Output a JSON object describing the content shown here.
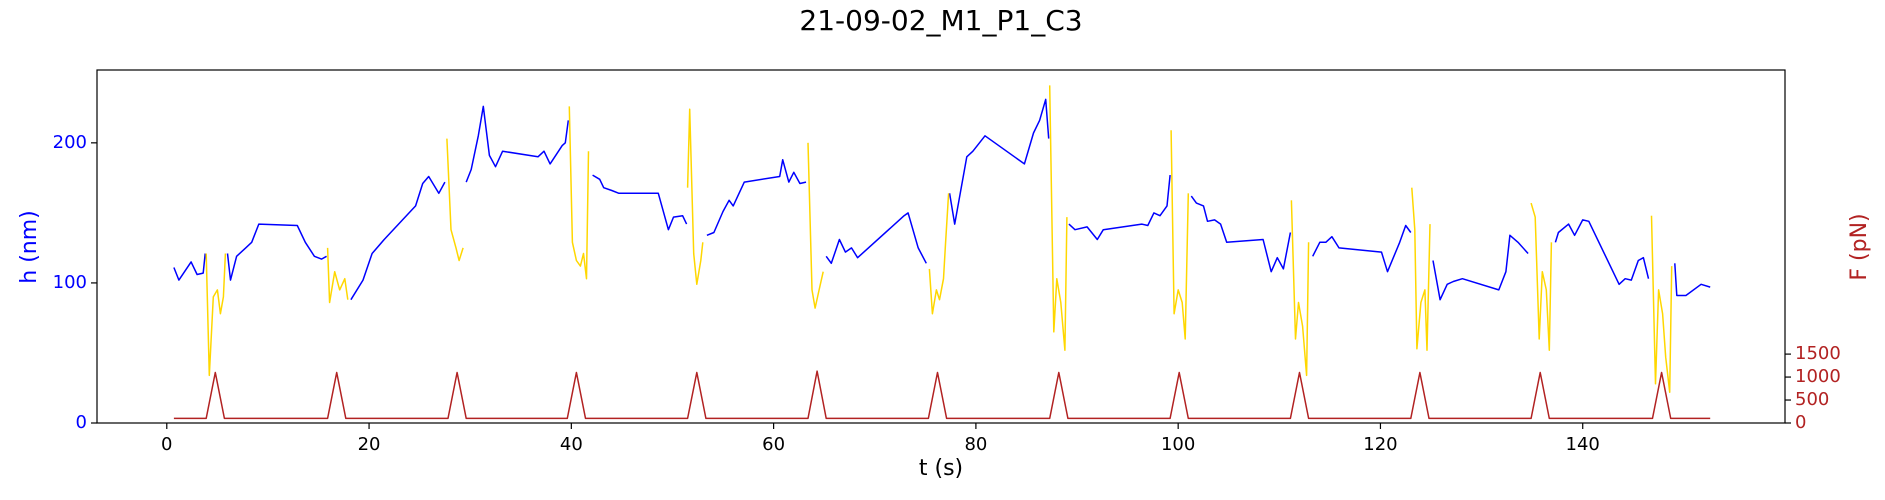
{
  "chart_data": {
    "type": "line",
    "title": "21-09-02_M1_P1_C3",
    "xlabel": "t (s)",
    "ylabel": "h (nm)",
    "y2label": "F (pN)",
    "ycolor": "#0000ff",
    "y2color": "#b22222",
    "xlim": [
      -6.9,
      160
    ],
    "xticks": [
      0,
      20,
      40,
      60,
      80,
      100,
      120,
      140
    ],
    "ylim": [
      0,
      252
    ],
    "yticks": [
      0,
      100,
      200
    ],
    "y2lim": [
      0,
      7684
    ],
    "y2ticks": [
      0,
      500,
      1000,
      1500
    ],
    "series": [
      {
        "color": "#0000ff",
        "x": [
          0.7,
          1.2,
          2.4,
          3,
          3.6,
          3.8,
          null,
          6,
          6.3,
          6.9,
          7.8,
          8.4,
          9.1,
          12.9,
          13.7,
          14.6,
          15.3,
          15.8,
          null,
          18.2,
          19.4,
          20.3,
          21.5,
          24.6,
          25.3,
          25.9,
          26.9,
          27.5,
          null,
          29.6,
          30.1,
          30.8,
          31.3,
          31.9,
          32.5,
          33.2,
          36.7,
          37.3,
          37.9,
          39.1,
          39.4,
          39.7,
          null,
          42.1,
          42.8,
          43.2,
          44,
          44.7,
          48.6,
          49.6,
          50.1,
          51,
          51.4,
          null,
          53.4,
          54.1,
          55,
          55.6,
          56,
          57.1,
          60.6,
          60.9,
          61.5,
          62,
          62.6,
          63.2,
          null,
          65.2,
          65.7,
          66.5,
          67.1,
          67.7,
          68.3,
          72.9,
          73.3,
          74.3,
          75.1,
          null,
          77.4,
          77.9,
          79.1,
          79.7,
          80.9,
          84.8,
          85.7,
          86.3,
          86.9,
          87.2,
          null,
          89.2,
          89.8,
          91,
          92,
          92.6,
          96.4,
          97,
          97.6,
          98.2,
          98.9,
          99.2,
          null,
          101.3,
          101.8,
          102.5,
          102.9,
          103.6,
          104.2,
          104.8,
          108.4,
          109.2,
          109.8,
          110.4,
          111.1,
          null,
          113.3,
          114,
          114.6,
          115.2,
          115.9,
          120.1,
          120.7,
          121.9,
          122.5,
          123,
          null,
          125.2,
          125.9,
          126.6,
          127.2,
          128.1,
          131.7,
          132.4,
          132.8,
          133.6,
          134.6,
          null,
          137.3,
          137.6,
          138.6,
          139.2,
          140,
          140.6,
          143.6,
          144.2,
          144.8,
          145.5,
          146,
          146.5,
          null,
          149.1,
          149.3,
          150.2,
          151.7,
          152.6
        ],
        "values": [
          111,
          102,
          115,
          106,
          107,
          121,
          null,
          121,
          102,
          119,
          125,
          129,
          142,
          141,
          129,
          119,
          117,
          119,
          null,
          88,
          102,
          121,
          131,
          155,
          171,
          176,
          164,
          172,
          null,
          172,
          181,
          205,
          226,
          191,
          183,
          194,
          190,
          194,
          185,
          198,
          200,
          216,
          null,
          177,
          174,
          168,
          166,
          164,
          164,
          138,
          147,
          148,
          142,
          null,
          134,
          136,
          151,
          159,
          155,
          172,
          176,
          188,
          172,
          179,
          171,
          172,
          null,
          119,
          114,
          131,
          122,
          125,
          118,
          148,
          150,
          125,
          114,
          null,
          164,
          142,
          190,
          194,
          205,
          185,
          207,
          216,
          231,
          203,
          null,
          142,
          138,
          140,
          131,
          138,
          142,
          141,
          150,
          148,
          155,
          177,
          null,
          162,
          157,
          155,
          144,
          145,
          142,
          129,
          131,
          108,
          118,
          110,
          136,
          null,
          119,
          129,
          129,
          133,
          125,
          122,
          108,
          129,
          141,
          136,
          null,
          116,
          88,
          99,
          101,
          103,
          95,
          108,
          134,
          129,
          121,
          null,
          129,
          136,
          142,
          134,
          145,
          144,
          99,
          103,
          102,
          116,
          118,
          103,
          null,
          114,
          91,
          91,
          99,
          97
        ]
      },
      {
        "color": "#ffd700",
        "x": [
          3.9,
          4.2,
          4.6,
          5,
          5.3,
          5.6,
          5.8,
          null,
          15.9,
          16.1,
          16.6,
          17.1,
          17.6,
          17.9,
          null,
          27.7,
          28.1,
          28.6,
          28.9,
          29.3,
          null,
          39.8,
          40.1,
          40.5,
          40.9,
          41.2,
          41.5,
          41.7,
          null,
          51.5,
          51.7,
          52.1,
          52.4,
          52.8,
          53,
          null,
          63.4,
          63.8,
          64.1,
          64.5,
          64.9,
          null,
          75.4,
          75.7,
          76.1,
          76.4,
          76.8,
          77,
          77.3,
          null,
          87.3,
          87.7,
          88,
          88.4,
          88.8,
          89,
          null,
          99.3,
          99.6,
          100,
          100.4,
          100.7,
          101,
          null,
          111.2,
          111.6,
          111.9,
          112.3,
          112.7,
          112.9,
          null,
          123.1,
          123.4,
          123.6,
          124,
          124.4,
          124.6,
          124.9,
          null,
          134.9,
          135.3,
          135.7,
          136,
          136.4,
          136.7,
          136.9,
          null,
          146.8,
          147.2,
          147.5,
          147.9,
          148.2,
          148.6,
          148.8
        ],
        "values": [
          121,
          34,
          90,
          95,
          78,
          90,
          121,
          null,
          125,
          86,
          108,
          95,
          103,
          88,
          null,
          203,
          138,
          125,
          116,
          125,
          null,
          226,
          129,
          116,
          112,
          121,
          103,
          194,
          null,
          168,
          224,
          121,
          99,
          116,
          129,
          null,
          200,
          95,
          82,
          95,
          108,
          null,
          110,
          78,
          95,
          88,
          103,
          129,
          164,
          null,
          241,
          65,
          103,
          86,
          52,
          147,
          null,
          209,
          78,
          95,
          86,
          60,
          164,
          null,
          159,
          60,
          86,
          69,
          34,
          129,
          null,
          168,
          138,
          53,
          86,
          95,
          52,
          142,
          null,
          157,
          147,
          60,
          108,
          95,
          52,
          129,
          null,
          148,
          28,
          95,
          78,
          47,
          22,
          112
        ]
      },
      {
        "color": "#b22222",
        "axis": "y2",
        "x": [
          0.7,
          3.9,
          4.8,
          5.7,
          15.9,
          16.8,
          17.7,
          27.8,
          28.7,
          29.6,
          39.6,
          40.5,
          41.4,
          51.5,
          52.4,
          53.3,
          63.4,
          64.3,
          65.2,
          75.3,
          76.2,
          77.1,
          87.3,
          88.2,
          89.1,
          99.2,
          100.1,
          101,
          111.1,
          112,
          112.9,
          123,
          123.9,
          124.8,
          134.9,
          135.8,
          136.7,
          146.9,
          147.8,
          148.7,
          152.6
        ],
        "values": [
          100,
          100,
          1100,
          100,
          100,
          1100,
          100,
          100,
          1100,
          100,
          100,
          1100,
          100,
          100,
          1100,
          100,
          100,
          1130,
          100,
          100,
          1100,
          100,
          100,
          1100,
          100,
          100,
          1100,
          100,
          100,
          1100,
          100,
          100,
          1100,
          100,
          100,
          1100,
          100,
          100,
          1100,
          100,
          100
        ]
      }
    ]
  }
}
